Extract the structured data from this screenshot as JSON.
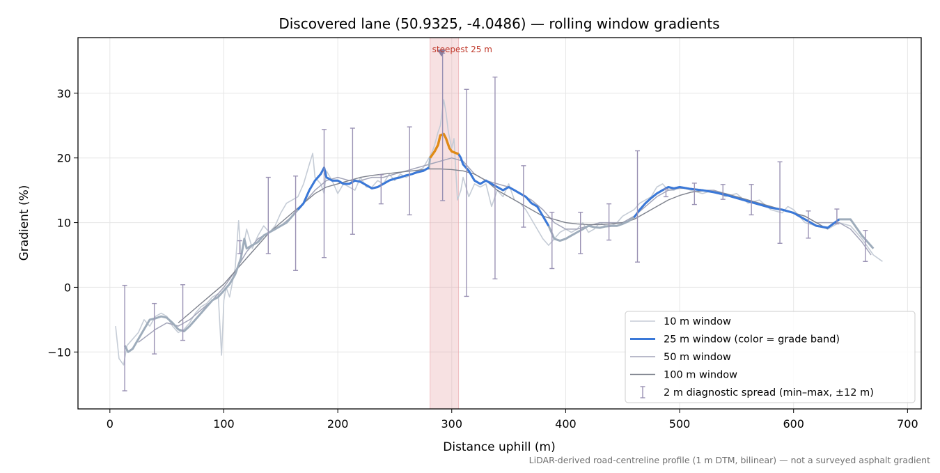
{
  "chart_data": {
    "type": "line",
    "title": "Discovered lane (50.9325, -4.0486) — rolling window gradients",
    "xlabel": "Distance uphill (m)",
    "ylabel": "Gradient (%)",
    "xlim": [
      -28,
      712
    ],
    "ylim": [
      -18.8,
      38.6
    ],
    "xticks": [
      0,
      100,
      200,
      300,
      400,
      500,
      600,
      700
    ],
    "yticks": [
      -10,
      0,
      10,
      20,
      30
    ],
    "xtick_labels": [
      "0",
      "100",
      "200",
      "300",
      "400",
      "500",
      "600",
      "700"
    ],
    "ytick_labels": [
      "−10",
      "0",
      "10",
      "20",
      "30"
    ],
    "grid": true,
    "legend_position": "lower-right",
    "colors": {
      "w10": "#c5ccd6",
      "w25": "#3a78d8",
      "w25_steep": "#e08a16",
      "w25_flat": "#9eacbb",
      "w50": "#a2a4b8",
      "w100": "#7d818c",
      "spread": "#9a92b4",
      "highlight": "#e9a8ad",
      "annotation": "#c0392b"
    },
    "steepest": {
      "x_start": 281,
      "x_end": 306,
      "marker_x": 291,
      "marker_y": 36.3,
      "label": "steepest 25 m"
    },
    "series": [
      {
        "name": "10 m window",
        "x": [
          5,
          8,
          12,
          15,
          20,
          25,
          30,
          35,
          40,
          45,
          50,
          55,
          60,
          65,
          70,
          75,
          80,
          85,
          90,
          95,
          98,
          100,
          102,
          105,
          110,
          113,
          115,
          118,
          120,
          125,
          130,
          135,
          140,
          145,
          150,
          155,
          160,
          165,
          170,
          175,
          178,
          180,
          185,
          188,
          190,
          195,
          200,
          205,
          210,
          215,
          220,
          225,
          230,
          235,
          240,
          245,
          250,
          255,
          260,
          265,
          270,
          275,
          280,
          283,
          285,
          288,
          290,
          293,
          295,
          297,
          300,
          302,
          305,
          308,
          310,
          315,
          320,
          325,
          330,
          335,
          340,
          345,
          350,
          355,
          360,
          365,
          370,
          375,
          380,
          385,
          390,
          395,
          400,
          405,
          410,
          415,
          420,
          425,
          430,
          435,
          440,
          445,
          450,
          455,
          460,
          465,
          470,
          475,
          480,
          485,
          490,
          495,
          500,
          510,
          520,
          530,
          540,
          550,
          560,
          570,
          580,
          590,
          595,
          600,
          610,
          620,
          630,
          640,
          650,
          660,
          670,
          678
        ],
        "y": [
          -6,
          -11,
          -12,
          -9,
          -8,
          -7,
          -5,
          -6,
          -4.5,
          -4,
          -4.5,
          -6,
          -7,
          -6.5,
          -5.5,
          -4,
          -3,
          -2.5,
          -1.5,
          -1,
          -10.5,
          -2,
          0,
          -1.5,
          3,
          10.3,
          5,
          7,
          9,
          6,
          8,
          9.5,
          8.5,
          9.5,
          11.5,
          13,
          13.5,
          14,
          16,
          19,
          20.7,
          17,
          16,
          14.5,
          18,
          16.5,
          14.5,
          16,
          15.5,
          15,
          17,
          15.5,
          15.5,
          16.5,
          16,
          17.5,
          16.5,
          17.5,
          17,
          17.5,
          18,
          18.5,
          20,
          21,
          22,
          24,
          25,
          29,
          27,
          24,
          21.5,
          23,
          13.5,
          15,
          17,
          14,
          16,
          15.5,
          16,
          12.5,
          15,
          14,
          16,
          13.5,
          13,
          12,
          10.5,
          9,
          7.5,
          6.5,
          7.5,
          8.5,
          9,
          8.5,
          9,
          10,
          8.5,
          9,
          10,
          9.5,
          9.5,
          10,
          11,
          11.5,
          12,
          13,
          13.5,
          14,
          15.5,
          16,
          15,
          15,
          15.5,
          15,
          14.5,
          15,
          14,
          14.5,
          13,
          13.5,
          12,
          11.5,
          12.5,
          12,
          10,
          9.5,
          9,
          10,
          9.5,
          7.5,
          5,
          4
        ]
      },
      {
        "name": "25 m window (color = grade band)",
        "x": [
          13,
          16,
          20,
          25,
          30,
          35,
          40,
          45,
          50,
          55,
          60,
          65,
          70,
          75,
          80,
          85,
          90,
          95,
          100,
          105,
          110,
          115,
          118,
          120,
          125,
          130,
          135,
          140,
          145,
          150,
          155,
          160,
          165,
          170,
          175,
          180,
          185,
          188,
          190,
          195,
          200,
          205,
          210,
          215,
          220,
          225,
          230,
          235,
          240,
          245,
          250,
          255,
          260,
          265,
          270,
          275,
          280,
          281,
          285,
          288,
          290,
          293,
          295,
          298,
          300,
          303,
          306,
          308,
          310,
          315,
          320,
          325,
          330,
          335,
          340,
          345,
          350,
          355,
          360,
          365,
          370,
          375,
          380,
          385,
          390,
          395,
          400,
          405,
          410,
          415,
          420,
          425,
          430,
          435,
          440,
          445,
          450,
          455,
          460,
          465,
          470,
          475,
          480,
          485,
          490,
          495,
          500,
          510,
          520,
          530,
          540,
          550,
          560,
          570,
          580,
          590,
          600,
          610,
          620,
          630,
          640,
          650,
          660,
          670
        ],
        "y": [
          -9,
          -10,
          -9.5,
          -8,
          -6.5,
          -5,
          -4.8,
          -4.5,
          -4.7,
          -5.5,
          -6.5,
          -6.8,
          -6,
          -5,
          -4,
          -3,
          -2,
          -1.5,
          -0.5,
          0.5,
          2,
          4.5,
          7.5,
          6,
          6.5,
          7,
          8,
          8.5,
          9,
          9.5,
          10,
          11,
          12,
          13,
          15,
          16.5,
          17.5,
          18.5,
          17,
          16.5,
          16.5,
          16,
          16,
          16.5,
          16.3,
          15.8,
          15.3,
          15.5,
          16,
          16.5,
          16.8,
          17,
          17.3,
          17.5,
          17.8,
          18,
          18.5,
          20,
          21,
          22,
          23.5,
          23.7,
          23,
          21.5,
          21,
          20.8,
          20.6,
          20,
          19,
          18,
          16.5,
          16,
          16.5,
          16,
          15.5,
          15,
          15.5,
          15,
          14.5,
          14,
          13,
          12.5,
          11,
          9.5,
          7.5,
          7.2,
          7.5,
          8,
          8.5,
          9,
          9.5,
          9.3,
          9.2,
          9.4,
          9.5,
          9.5,
          9.8,
          10.2,
          10.8,
          12,
          13,
          13.8,
          14.5,
          15,
          15.5,
          15.3,
          15.5,
          15.2,
          15,
          14.7,
          14.3,
          13.8,
          13.3,
          12.8,
          12.3,
          12,
          11.5,
          10.5,
          9.5,
          9.2,
          10.5,
          10.5,
          8,
          6
        ],
        "steep_range": [
          281,
          306
        ],
        "blue_ranges": [
          [
            163,
            280
          ],
          [
            306,
            385
          ],
          [
            460,
            648
          ]
        ]
      },
      {
        "name": "50 m window",
        "x": [
          25,
          40,
          50,
          60,
          70,
          80,
          90,
          100,
          110,
          120,
          130,
          140,
          150,
          160,
          170,
          180,
          190,
          200,
          210,
          220,
          230,
          240,
          250,
          260,
          270,
          280,
          290,
          300,
          310,
          320,
          330,
          340,
          350,
          360,
          370,
          380,
          390,
          400,
          410,
          420,
          430,
          440,
          450,
          460,
          470,
          480,
          490,
          500,
          510,
          520,
          530,
          540,
          550,
          560,
          570,
          580,
          590,
          600,
          610,
          620,
          630,
          640,
          650,
          660,
          668
        ],
        "y": [
          -8.5,
          -6.5,
          -5.5,
          -6,
          -5,
          -3.5,
          -2,
          0,
          2.5,
          5.5,
          7.5,
          8.5,
          9.5,
          11,
          13,
          15,
          16.5,
          17,
          16.5,
          16.5,
          17,
          17,
          17.5,
          18,
          18.5,
          19,
          19.5,
          20,
          19.5,
          17.5,
          16.5,
          16,
          15.5,
          14.5,
          13.5,
          12,
          10,
          9,
          9,
          9.5,
          10,
          10,
          10,
          11,
          12.5,
          14,
          15,
          15.3,
          15.3,
          15,
          15,
          14.5,
          14,
          13.5,
          13,
          12.5,
          12,
          11.5,
          11,
          10,
          10,
          10,
          9,
          7,
          5
        ]
      },
      {
        "name": "100 m window",
        "x": [
          60,
          70,
          80,
          90,
          100,
          110,
          120,
          130,
          140,
          150,
          160,
          170,
          180,
          190,
          200,
          210,
          220,
          230,
          240,
          250,
          260,
          270,
          280,
          290,
          300,
          310,
          320,
          330,
          340,
          350,
          360,
          370,
          380,
          390,
          400,
          410,
          420,
          430,
          440,
          450,
          460,
          470,
          480,
          490,
          500,
          510,
          520,
          530,
          540,
          550,
          560,
          570,
          580,
          590,
          600,
          610,
          620,
          630
        ],
        "y": [
          -5.5,
          -4,
          -2.5,
          -1,
          0.5,
          2.5,
          4.5,
          6.5,
          8.5,
          10,
          11.5,
          13,
          14.5,
          15.5,
          16,
          16.5,
          17,
          17.3,
          17.5,
          17.7,
          17.9,
          18.1,
          18.3,
          18.3,
          18.2,
          18,
          17.5,
          16.5,
          15,
          14,
          13,
          12,
          11,
          10.5,
          10,
          9.8,
          9.7,
          9.7,
          9.8,
          10,
          10.5,
          11.5,
          12.5,
          13.5,
          14.2,
          14.7,
          14.9,
          14.8,
          14.5,
          14,
          13.5,
          13,
          12.5,
          12,
          11.5,
          11,
          10,
          9
        ]
      }
    ],
    "spread": {
      "name": "2 m diagnostic spread (min–max, ±12 m)",
      "x": [
        13,
        39,
        64,
        114,
        139,
        163,
        188,
        213,
        238,
        263,
        292,
        313,
        338,
        363,
        388,
        413,
        438,
        463,
        488,
        513,
        538,
        563,
        588,
        613,
        638,
        663
      ],
      "low": [
        -16,
        -10.3,
        -8.2,
        5.2,
        5.2,
        2.6,
        4.6,
        8.2,
        12.9,
        11.2,
        13.4,
        -1.4,
        1.3,
        9.3,
        2.9,
        5.2,
        7.3,
        3.9,
        14,
        12.8,
        13.6,
        11.2,
        6.8,
        7.6,
        9.8,
        4
      ],
      "high": [
        0.3,
        -2.5,
        0.4,
        7.2,
        17,
        17.2,
        24.4,
        24.6,
        17.4,
        24.8,
        36.2,
        30.6,
        32.5,
        18.8,
        11.6,
        11.6,
        12.9,
        21.1,
        15.2,
        16.1,
        15.9,
        15.9,
        19.4,
        11.8,
        12.1,
        8.8
      ]
    },
    "legend": [
      {
        "label": "10 m window",
        "kind": "w10"
      },
      {
        "label": "25 m window (color = grade band)",
        "kind": "w25"
      },
      {
        "label": "50 m window",
        "kind": "w50"
      },
      {
        "label": "100 m window",
        "kind": "w100"
      },
      {
        "label": "2 m diagnostic spread (min–max, ±12 m)",
        "kind": "spread"
      }
    ],
    "footnote": "LiDAR-derived road-centreline profile (1 m DTM, bilinear) — not a surveyed asphalt gradient"
  }
}
